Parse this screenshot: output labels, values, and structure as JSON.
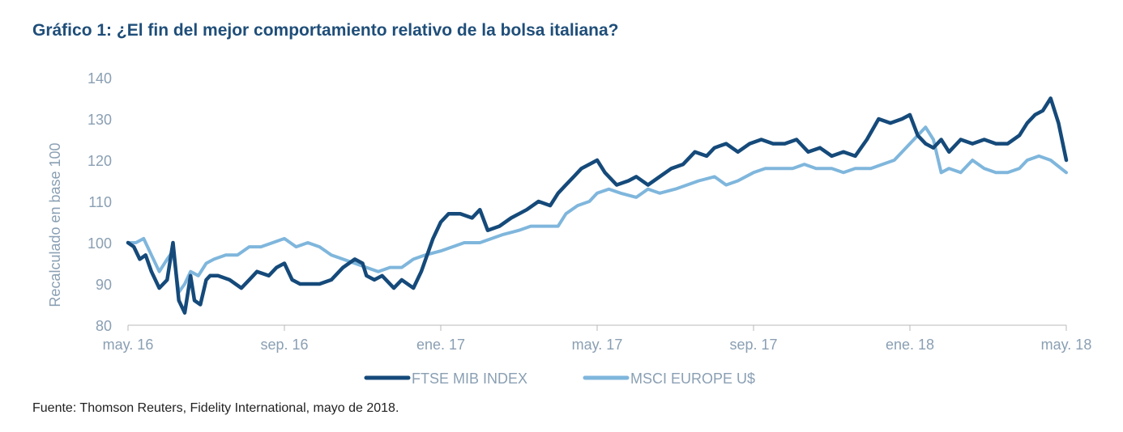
{
  "title": "Gráfico 1: ¿El fin del mejor comportamiento relativo de la bolsa italiana?",
  "source": "Fuente: Thomson Reuters, Fidelity International, mayo de 2018.",
  "colors": {
    "title": "#1f4e79",
    "axis_text": "#8a9fb3",
    "series_dark": "#154a7a",
    "series_light": "#7fb6dc"
  },
  "chart_data": {
    "type": "line",
    "title": "Gráfico 1: ¿El fin del mejor comportamiento relativo de la bolsa italiana?",
    "xlabel": "",
    "ylabel": "Recalculado en base 100",
    "ylim": [
      80,
      140
    ],
    "yticks": [
      80,
      90,
      100,
      110,
      120,
      130,
      140
    ],
    "xlim": [
      0,
      24
    ],
    "xticks": [
      {
        "label": "may. 16",
        "x": 0
      },
      {
        "label": "sep. 16",
        "x": 4
      },
      {
        "label": "ene. 17",
        "x": 8
      },
      {
        "label": "may. 17",
        "x": 12
      },
      {
        "label": "sep. 17",
        "x": 16
      },
      {
        "label": "ene. 18",
        "x": 20
      },
      {
        "label": "may. 18",
        "x": 24
      }
    ],
    "legend": "bottom-center",
    "series": [
      {
        "name": "FTSE MIB INDEX",
        "color": "#154a7a",
        "x": [
          0,
          0.15,
          0.3,
          0.45,
          0.6,
          0.8,
          1.0,
          1.15,
          1.3,
          1.45,
          1.6,
          1.7,
          1.85,
          2.0,
          2.1,
          2.3,
          2.6,
          2.9,
          3.1,
          3.3,
          3.6,
          3.8,
          4.0,
          4.2,
          4.4,
          4.6,
          4.9,
          5.2,
          5.5,
          5.8,
          6.0,
          6.1,
          6.3,
          6.5,
          6.8,
          7.0,
          7.3,
          7.5,
          7.8,
          8.0,
          8.2,
          8.5,
          8.8,
          9.0,
          9.2,
          9.5,
          9.8,
          10.0,
          10.2,
          10.5,
          10.8,
          11.0,
          11.2,
          11.4,
          11.6,
          11.8,
          12.0,
          12.2,
          12.5,
          12.8,
          13.0,
          13.3,
          13.6,
          13.9,
          14.2,
          14.5,
          14.8,
          15.0,
          15.3,
          15.6,
          15.9,
          16.2,
          16.5,
          16.8,
          17.1,
          17.4,
          17.7,
          18.0,
          18.3,
          18.6,
          18.9,
          19.2,
          19.5,
          19.8,
          20.0,
          20.2,
          20.4,
          20.6,
          20.8,
          21.0,
          21.3,
          21.6,
          21.9,
          22.2,
          22.5,
          22.8,
          23.0,
          23.2,
          23.4,
          23.6,
          23.8,
          24.0
        ],
        "values": [
          100,
          99,
          96,
          97,
          93,
          89,
          91,
          100,
          86,
          83,
          92,
          86,
          85,
          91,
          92,
          92,
          91,
          89,
          91,
          93,
          92,
          94,
          95,
          91,
          90,
          90,
          90,
          91,
          94,
          96,
          95,
          92,
          91,
          92,
          89,
          91,
          89,
          93,
          101,
          105,
          107,
          107,
          106,
          108,
          103,
          104,
          106,
          107,
          108,
          110,
          109,
          112,
          114,
          116,
          118,
          119,
          120,
          117,
          114,
          115,
          116,
          114,
          116,
          118,
          119,
          122,
          121,
          123,
          124,
          122,
          124,
          125,
          124,
          124,
          125,
          122,
          123,
          121,
          122,
          121,
          125,
          130,
          129,
          130,
          131,
          126,
          124,
          123,
          125,
          122,
          125,
          124,
          125,
          124,
          124,
          126,
          129,
          131,
          132,
          135,
          129,
          120
        ]
      },
      {
        "name": "MSCI EUROPE U$",
        "color": "#7fb6dc",
        "x": [
          0,
          0.2,
          0.4,
          0.6,
          0.8,
          1.0,
          1.15,
          1.3,
          1.45,
          1.6,
          1.8,
          2.0,
          2.2,
          2.5,
          2.8,
          3.1,
          3.4,
          3.7,
          4.0,
          4.3,
          4.6,
          4.9,
          5.2,
          5.5,
          5.8,
          6.1,
          6.4,
          6.7,
          7.0,
          7.3,
          7.6,
          8.0,
          8.3,
          8.6,
          9.0,
          9.3,
          9.6,
          10.0,
          10.3,
          10.6,
          11.0,
          11.2,
          11.5,
          11.8,
          12.0,
          12.3,
          12.6,
          13.0,
          13.3,
          13.6,
          14.0,
          14.3,
          14.6,
          15.0,
          15.3,
          15.6,
          16.0,
          16.3,
          16.6,
          17.0,
          17.3,
          17.6,
          18.0,
          18.3,
          18.6,
          19.0,
          19.3,
          19.6,
          20.0,
          20.2,
          20.4,
          20.6,
          20.8,
          21.0,
          21.3,
          21.6,
          21.9,
          22.2,
          22.5,
          22.8,
          23.0,
          23.3,
          23.6,
          24.0
        ],
        "values": [
          100,
          100,
          101,
          97,
          93,
          96,
          98,
          88,
          90,
          93,
          92,
          95,
          96,
          97,
          97,
          99,
          99,
          100,
          101,
          99,
          100,
          99,
          97,
          96,
          95,
          94,
          93,
          94,
          94,
          96,
          97,
          98,
          99,
          100,
          100,
          101,
          102,
          103,
          104,
          104,
          104,
          107,
          109,
          110,
          112,
          113,
          112,
          111,
          113,
          112,
          113,
          114,
          115,
          116,
          114,
          115,
          117,
          118,
          118,
          118,
          119,
          118,
          118,
          117,
          118,
          118,
          119,
          120,
          124,
          126,
          128,
          125,
          117,
          118,
          117,
          120,
          118,
          117,
          117,
          118,
          120,
          121,
          120,
          117
        ]
      }
    ]
  }
}
